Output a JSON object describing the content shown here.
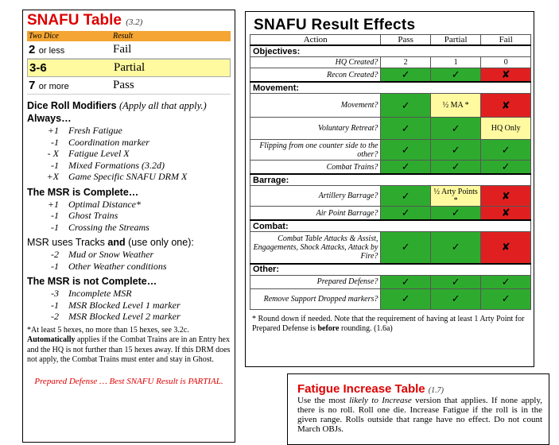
{
  "snafu_table": {
    "title": "SNAFU Table",
    "ref": "(3.2)",
    "col_dice": "Two Dice",
    "col_result": "Result",
    "rows": [
      {
        "dice": "2",
        "dice_small": "or less",
        "result": "Fail",
        "highlight": false
      },
      {
        "dice": "3-6",
        "dice_small": "",
        "result": "Partial",
        "highlight": true
      },
      {
        "dice": "7",
        "dice_small": "or more",
        "result": "Pass",
        "highlight": false
      }
    ],
    "drm_heading": "Dice Roll Modifiers",
    "drm_note": "(Apply all that apply.)",
    "always_label": "Always…",
    "always_mods": [
      {
        "n": "+1",
        "t": "Fresh Fatigue"
      },
      {
        "n": "-1",
        "t": "Coordination marker"
      },
      {
        "n": "- X",
        "t": "Fatigue Level X"
      },
      {
        "n": "-1",
        "t": "Mixed Formations (3.2d)"
      },
      {
        "n": "+X",
        "t": "Game Specific SNAFU DRM X"
      }
    ],
    "complete_label": "The MSR is Complete…",
    "complete_mods": [
      {
        "n": "+1",
        "t": "Optimal Distance*"
      },
      {
        "n": "-1",
        "t": "Ghost Trains"
      },
      {
        "n": "-1",
        "t": "Crossing the Streams"
      }
    ],
    "tracks_pre": "MSR uses Tracks",
    "tracks_and": "and",
    "tracks_post": "(use only one):",
    "tracks_mods": [
      {
        "n": "-2",
        "t": "Mud or Snow Weather"
      },
      {
        "n": "-1",
        "t": "Other Weather conditions"
      }
    ],
    "incomplete_label": "The MSR is not Complete…",
    "incomplete_mods": [
      {
        "n": "-3",
        "t": "Incomplete MSR"
      },
      {
        "n": "-1",
        "t": "MSR Blocked Level 1 marker"
      },
      {
        "n": "-2",
        "t": "MSR Blocked Level 2 marker"
      }
    ],
    "footnote_1": "*At least 5 hexes, no more than 15 hexes, see 3.2c.",
    "footnote_auto": "Automatically",
    "footnote_2": " applies if the Combat Trains are in an Entry hex and the HQ is not further than 15 hexes away. If this DRM does not apply, the Combat Trains must enter and stay in Ghost.",
    "footer_red": "Prepared Defense … Best SNAFU Result is PARTIAL."
  },
  "result_effects": {
    "title": "SNAFU Result Effects",
    "headers": [
      "Action",
      "Pass",
      "Partial",
      "Fail"
    ],
    "sections": [
      {
        "name": "Objectives:",
        "rows": [
          {
            "action": "HQ Created?",
            "cells": [
              {
                "t": "2",
                "c": "w"
              },
              {
                "t": "1",
                "c": "w"
              },
              {
                "t": "0",
                "c": "w"
              }
            ]
          },
          {
            "action": "Recon Created?",
            "cells": [
              {
                "t": "✓",
                "c": "g"
              },
              {
                "t": "✓",
                "c": "g"
              },
              {
                "t": "✘",
                "c": "r"
              }
            ]
          }
        ]
      },
      {
        "name": "Movement:",
        "rows": [
          {
            "action": "Movement?",
            "cells": [
              {
                "t": "✓",
                "c": "g"
              },
              {
                "t": "½ MA *",
                "c": "y"
              },
              {
                "t": "✘",
                "c": "r"
              }
            ],
            "h": 30
          },
          {
            "action": "Voluntary Retreat?",
            "cells": [
              {
                "t": "✓",
                "c": "g"
              },
              {
                "t": "✓",
                "c": "g"
              },
              {
                "t": "HQ Only",
                "c": "y"
              }
            ],
            "h": 28
          },
          {
            "action": "Flipping from one counter side to the other?",
            "cells": [
              {
                "t": "✓",
                "c": "g"
              },
              {
                "t": "✓",
                "c": "g"
              },
              {
                "t": "✓",
                "c": "g"
              }
            ],
            "h": 26
          },
          {
            "action": "Combat Trains?",
            "cells": [
              {
                "t": "✓",
                "c": "g"
              },
              {
                "t": "✓",
                "c": "g"
              },
              {
                "t": "✓",
                "c": "g"
              }
            ]
          }
        ]
      },
      {
        "name": "Barrage:",
        "rows": [
          {
            "action": "Artillery Barrage?",
            "cells": [
              {
                "t": "✓",
                "c": "g"
              },
              {
                "t": "½ Arty Points *",
                "c": "y"
              },
              {
                "t": "✘",
                "c": "r"
              }
            ],
            "h": 26
          },
          {
            "action": "Air Point Barrage?",
            "cells": [
              {
                "t": "✓",
                "c": "g"
              },
              {
                "t": "✓",
                "c": "g"
              },
              {
                "t": "✘",
                "c": "r"
              }
            ]
          }
        ]
      },
      {
        "name": "Combat:",
        "rows": [
          {
            "action": "Combat Table Attacks & Assist, Engagements, Shock Attacks, Attack by Fire?",
            "cells": [
              {
                "t": "✓",
                "c": "g"
              },
              {
                "t": "✓",
                "c": "g"
              },
              {
                "t": "✘",
                "c": "r"
              }
            ],
            "h": 40
          }
        ]
      },
      {
        "name": "Other:",
        "rows": [
          {
            "action": "Prepared Defense?",
            "cells": [
              {
                "t": "✓",
                "c": "g"
              },
              {
                "t": "✓",
                "c": "g"
              },
              {
                "t": "✓",
                "c": "g"
              }
            ]
          },
          {
            "action": "Remove Support Dropped markers?",
            "cells": [
              {
                "t": "✓",
                "c": "g"
              },
              {
                "t": "✓",
                "c": "g"
              },
              {
                "t": "✓",
                "c": "g"
              }
            ],
            "h": 26
          }
        ]
      }
    ],
    "note_pre": "* Round down if needed. Note that the requirement of having at least 1 Arty Point for Prepared Defense is ",
    "note_bold": "before",
    "note_post": " rounding. (1.6a)"
  },
  "fatigue_table": {
    "title": "Fatigue Increase Table",
    "ref": "(1.7)",
    "body_pre": "Use the most ",
    "body_italic": "likely to Increase",
    "body_post": " version that applies. If none apply, there is no roll. Roll one die. Increase Fatigue if the roll is in the given range. Rolls outside that range have no effect. Do not count March OBJs."
  }
}
